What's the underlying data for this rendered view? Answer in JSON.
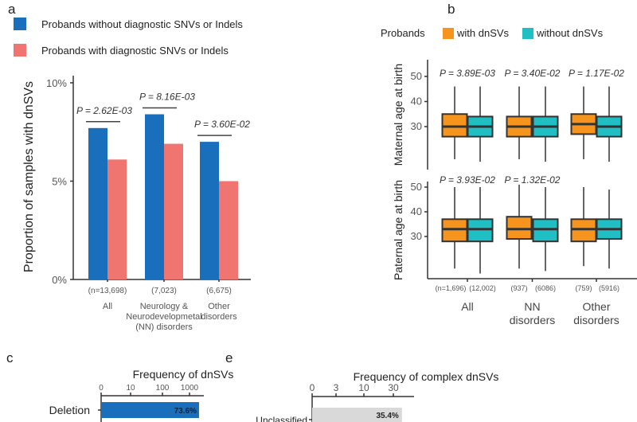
{
  "chart_data": [
    {
      "panel": "a",
      "type": "bar",
      "ylabel": "Proportion of samples with dnSVs",
      "ylim": [
        0,
        10
      ],
      "yticks": [
        "0%",
        "5%",
        "10%"
      ],
      "legend": "top-left",
      "categories": [
        {
          "n": "(n=13,698)",
          "lines": [
            "All"
          ]
        },
        {
          "n": "(7,023)",
          "lines": [
            "Neurology &",
            "Neurodevelopmetal",
            "(NN) disorders"
          ]
        },
        {
          "n": "(6,675)",
          "lines": [
            "Other",
            "disorders"
          ]
        }
      ],
      "series": [
        {
          "name": "Probands without diagnostic SNVs or Indels",
          "color": "#1a6fbd",
          "values": [
            7.7,
            8.4,
            7.0
          ]
        },
        {
          "name": "Probands with diagnostic SNVs or Indels",
          "color": "#f07470",
          "values": [
            6.1,
            6.9,
            5.0
          ]
        }
      ],
      "pvalues": [
        "P = 2.62E-03",
        "P = 8.16E-03",
        "P = 3.60E-02"
      ]
    },
    {
      "panel": "b",
      "type": "box",
      "legend_title": "Probands",
      "legend": "top",
      "series": [
        {
          "name": "with dnSVs",
          "color": "#f7941d"
        },
        {
          "name": "without dnSVs",
          "color": "#1fbfc4"
        }
      ],
      "categories": [
        {
          "lines": [
            "All"
          ],
          "n": [
            "(n=1,696)",
            "(12,002)"
          ]
        },
        {
          "lines": [
            "NN",
            "disorders"
          ],
          "n": [
            "(937)",
            "(6086)"
          ]
        },
        {
          "lines": [
            "Other",
            "disorders"
          ],
          "n": [
            "(759)",
            "(5916)"
          ]
        }
      ],
      "facets": [
        {
          "ylabel": "Maternal age at birth",
          "yticks": [
            30,
            40,
            50
          ],
          "pvalues": [
            "P = 3.89E-03",
            "P = 3.40E-02",
            "P = 1.17E-02"
          ],
          "boxes": [
            [
              [
                17,
                26,
                30,
                35,
                46
              ],
              [
                16,
                26,
                30,
                34,
                46
              ]
            ],
            [
              [
                17,
                26,
                30,
                34,
                46
              ],
              [
                16,
                26,
                30,
                34,
                46
              ]
            ],
            [
              [
                17,
                27,
                31,
                35,
                46
              ],
              [
                16,
                26,
                30,
                34,
                46
              ]
            ]
          ]
        },
        {
          "ylabel": "Paternal age at birth",
          "yticks": [
            30,
            40,
            50
          ],
          "pvalues": [
            "P = 3.93E-02",
            "P = 1.32E-02",
            ""
          ],
          "boxes": [
            [
              [
                17,
                28,
                33,
                37,
                50
              ],
              [
                15,
                28,
                33,
                37,
                50
              ]
            ],
            [
              [
                17,
                29,
                33,
                38,
                51
              ],
              [
                16,
                28,
                33,
                37,
                50
              ]
            ],
            [
              [
                18,
                28,
                33,
                37,
                50
              ],
              [
                17,
                29,
                33,
                37,
                49
              ]
            ]
          ]
        }
      ]
    },
    {
      "panel": "c",
      "type": "bar",
      "orientation": "horizontal",
      "title": "Frequency of dnSVs",
      "xscale": "log",
      "xticks": [
        "0",
        "10",
        "100",
        "1000"
      ],
      "categories": [
        "Deletion"
      ],
      "values": [
        2150
      ],
      "labels": [
        "73.6%"
      ],
      "color": "#1a6fbd"
    },
    {
      "panel": "e",
      "type": "bar",
      "orientation": "horizontal",
      "title": "Frequency of complex dnSVs",
      "xscale": "sqrt",
      "xticks": [
        "0",
        "3",
        "10",
        "30"
      ],
      "categories": [
        "Unclassified"
      ],
      "values": [
        36
      ],
      "labels": [
        "35.4%"
      ],
      "color": "#d9d9d9"
    }
  ]
}
